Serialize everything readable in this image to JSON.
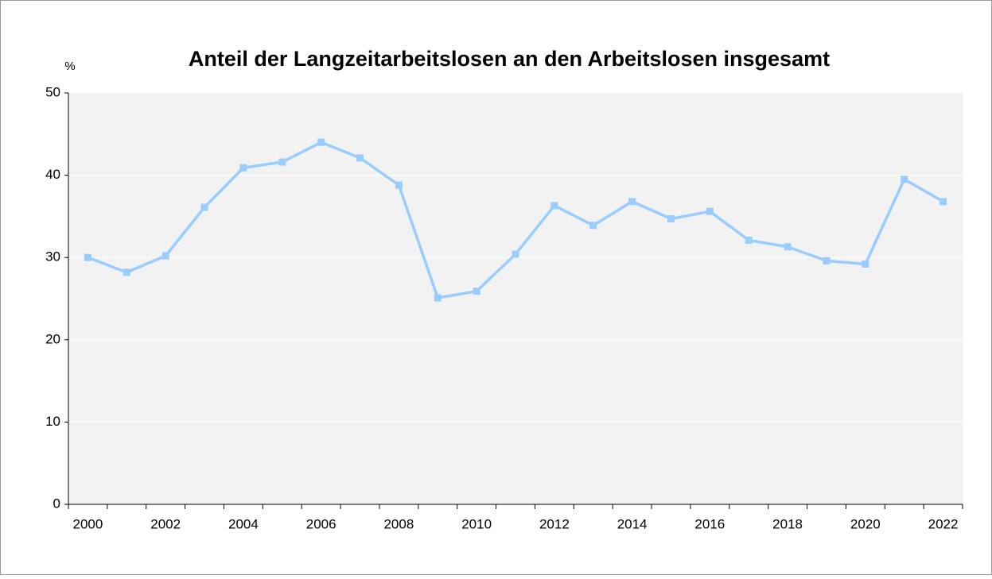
{
  "chart_data": {
    "type": "line",
    "title": "Anteil der Langzeitarbeitslosen an den Arbeitslosen insgesamt",
    "y_label": "%",
    "categories": [
      "2000",
      null,
      "2002",
      null,
      "2004",
      null,
      "2006",
      null,
      "2008",
      null,
      "2010",
      null,
      "2012",
      null,
      "2014",
      null,
      "2016",
      null,
      "2018",
      null,
      "2020",
      null,
      "2022"
    ],
    "values": [
      30.0,
      28.2,
      30.2,
      36.1,
      40.9,
      41.6,
      44.0,
      42.1,
      38.8,
      25.1,
      25.9,
      30.4,
      36.3,
      33.9,
      36.8,
      34.7,
      35.6,
      32.1,
      31.3,
      29.6,
      29.2,
      39.5,
      36.8
    ],
    "color": "#99ccff",
    "ylim": [
      0,
      50
    ],
    "yticks": [
      0,
      10,
      20,
      30,
      40,
      50
    ],
    "grid": true
  }
}
